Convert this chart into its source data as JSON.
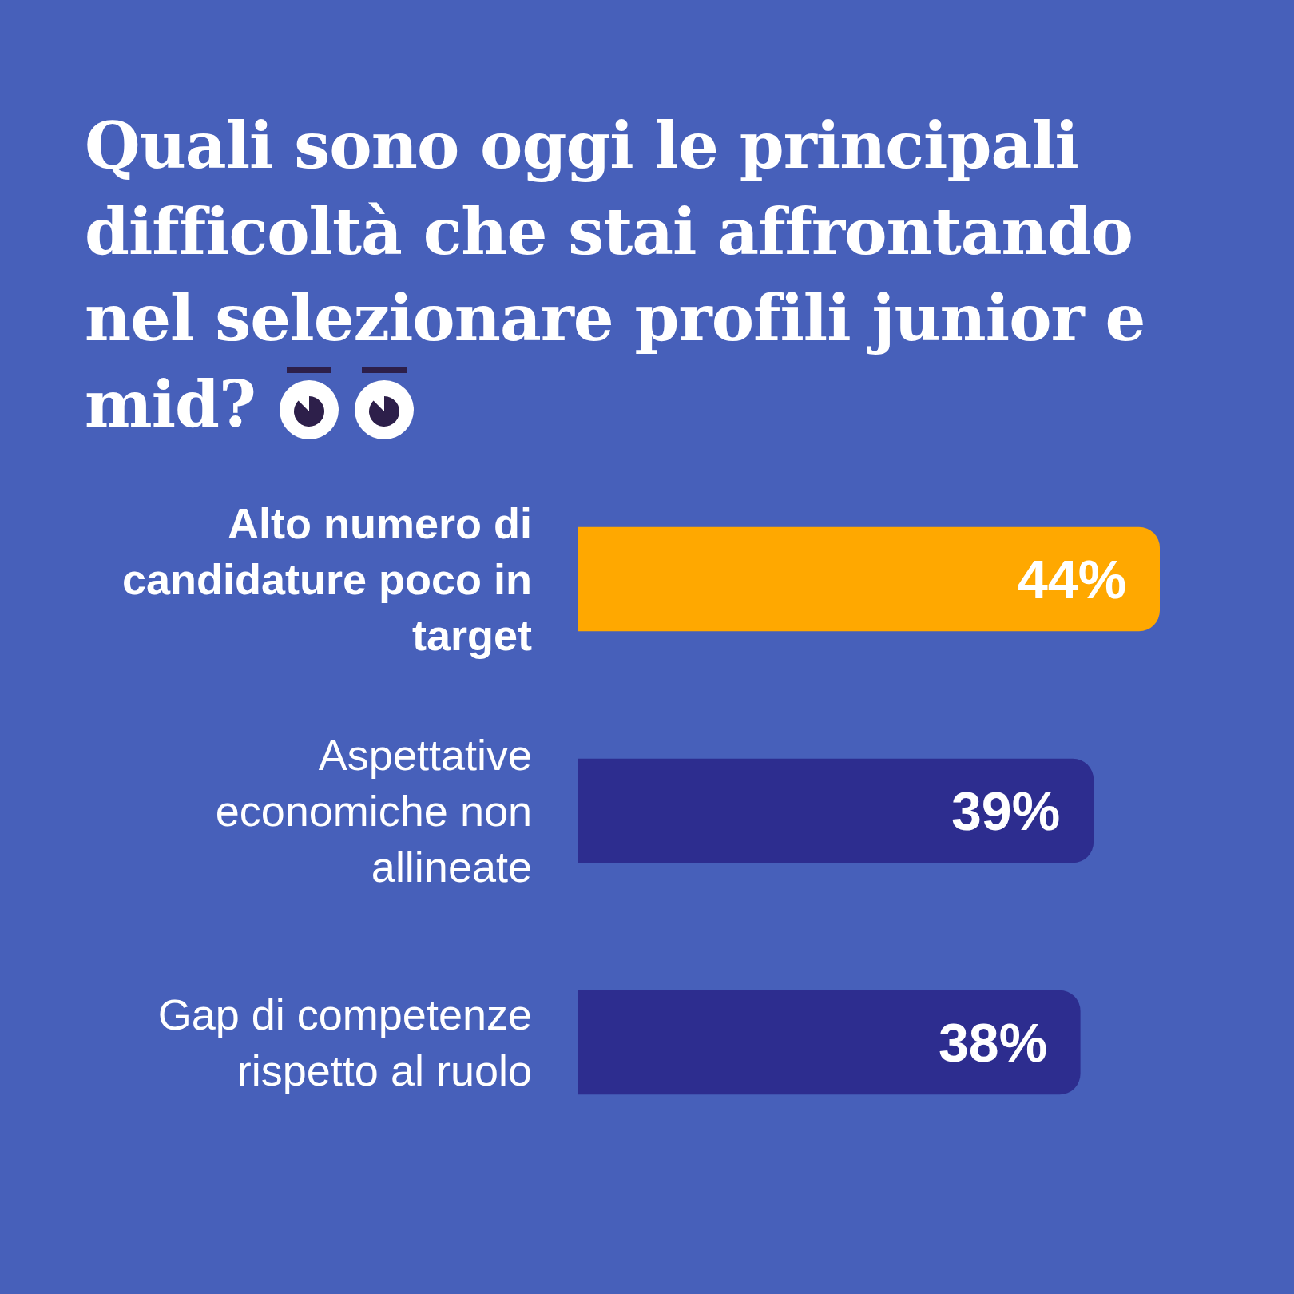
{
  "chart_data": {
    "type": "bar",
    "orientation": "horizontal",
    "title": "Quali sono oggi le principali difficoltà che stai affrontando nel selezionare profili junior e mid?",
    "categories": [
      "Alto numero di candidature poco in target",
      "Aspettative economiche non allineate",
      "Gap di competenze rispetto al ruolo"
    ],
    "values": [
      44,
      39,
      38
    ],
    "value_labels": [
      "44%",
      "39%",
      "38%"
    ],
    "colors": [
      "#ffa800",
      "#2d2d8f",
      "#2d2d8f"
    ],
    "xlim": [
      0,
      44
    ],
    "tick_labels": "y"
  }
}
